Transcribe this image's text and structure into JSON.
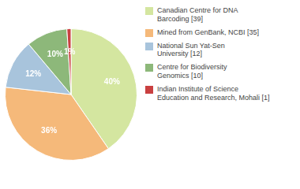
{
  "chart_data": {
    "type": "pie",
    "categories": [
      "Canadian Centre for DNA\nBarcoding [39]",
      "Mined from GenBank, NCBI [35]",
      "National Sun Yat-Sen\nUniversity [12]",
      "Centre for Biodiversity\nGenomics [10]",
      "Indian Institute of Science\nEducation and Research, Mohali [1]"
    ],
    "values": [
      40,
      36,
      12,
      10,
      1
    ],
    "value_labels": [
      "40%",
      "36%",
      "12%",
      "10%",
      "1%"
    ],
    "colors": [
      "#d4e6a0",
      "#f5b97a",
      "#a8c4dc",
      "#8db87a",
      "#c94040"
    ],
    "data_labels": true,
    "legend": "right"
  }
}
